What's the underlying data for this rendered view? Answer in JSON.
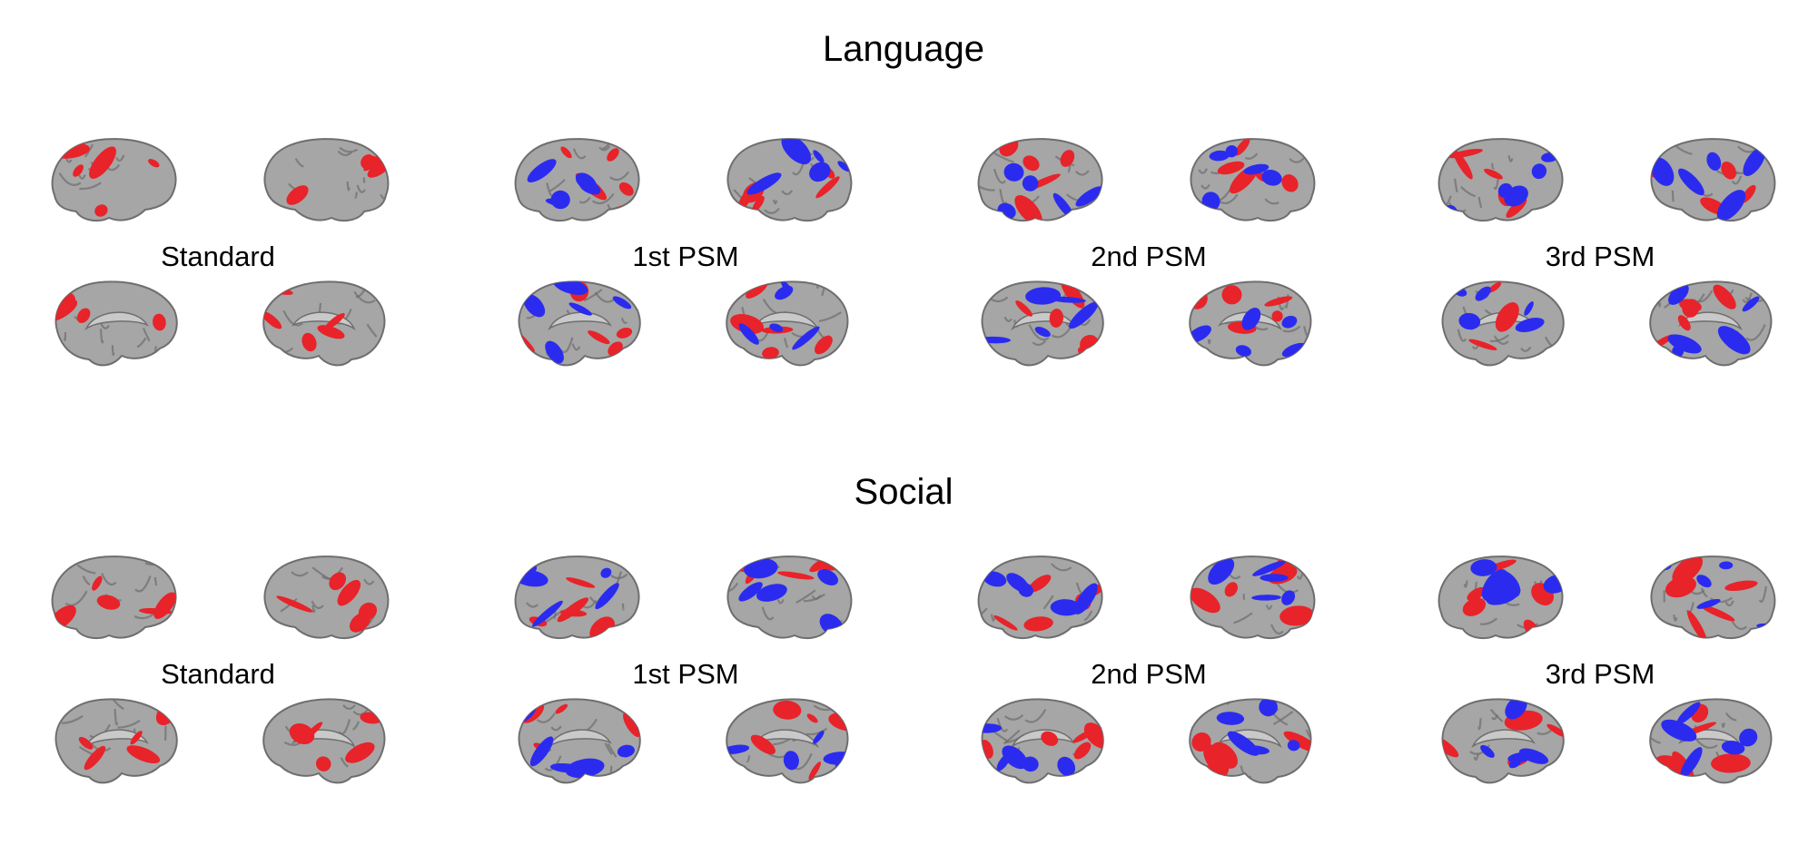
{
  "figure": {
    "panels": [
      {
        "title": "Language",
        "conditions": [
          {
            "label": "Standard",
            "views": [
              {
                "view": "lateral-left",
                "regions": [
                  "red"
                ]
              },
              {
                "view": "lateral-right",
                "regions": [
                  "red"
                ]
              },
              {
                "view": "medial-left",
                "regions": [
                  "red"
                ]
              },
              {
                "view": "medial-right",
                "regions": [
                  "red"
                ]
              }
            ]
          },
          {
            "label": "1st PSM",
            "views": [
              {
                "view": "lateral-left",
                "regions": [
                  "red",
                  "blue"
                ]
              },
              {
                "view": "lateral-right",
                "regions": [
                  "red",
                  "blue"
                ]
              },
              {
                "view": "medial-left",
                "regions": [
                  "red",
                  "blue"
                ]
              },
              {
                "view": "medial-right",
                "regions": [
                  "red",
                  "blue"
                ]
              }
            ]
          },
          {
            "label": "2nd PSM",
            "views": [
              {
                "view": "lateral-left",
                "regions": [
                  "red",
                  "blue"
                ]
              },
              {
                "view": "lateral-right",
                "regions": [
                  "red",
                  "blue"
                ]
              },
              {
                "view": "medial-left",
                "regions": [
                  "red",
                  "blue"
                ]
              },
              {
                "view": "medial-right",
                "regions": [
                  "red",
                  "blue"
                ]
              }
            ]
          },
          {
            "label": "3rd PSM",
            "views": [
              {
                "view": "lateral-left",
                "regions": [
                  "red",
                  "blue"
                ]
              },
              {
                "view": "lateral-right",
                "regions": [
                  "red",
                  "blue"
                ]
              },
              {
                "view": "medial-left",
                "regions": [
                  "red",
                  "blue"
                ]
              },
              {
                "view": "medial-right",
                "regions": [
                  "red",
                  "blue"
                ]
              }
            ]
          }
        ]
      },
      {
        "title": "Social",
        "conditions": [
          {
            "label": "Standard",
            "views": [
              {
                "view": "lateral-left",
                "regions": [
                  "red"
                ]
              },
              {
                "view": "lateral-right",
                "regions": [
                  "red"
                ]
              },
              {
                "view": "medial-left",
                "regions": [
                  "red"
                ]
              },
              {
                "view": "medial-right",
                "regions": [
                  "red"
                ]
              }
            ]
          },
          {
            "label": "1st PSM",
            "views": [
              {
                "view": "lateral-left",
                "regions": [
                  "red",
                  "blue"
                ]
              },
              {
                "view": "lateral-right",
                "regions": [
                  "red",
                  "blue"
                ]
              },
              {
                "view": "medial-left",
                "regions": [
                  "red",
                  "blue"
                ]
              },
              {
                "view": "medial-right",
                "regions": [
                  "red",
                  "blue"
                ]
              }
            ]
          },
          {
            "label": "2nd PSM",
            "views": [
              {
                "view": "lateral-left",
                "regions": [
                  "red",
                  "blue"
                ]
              },
              {
                "view": "lateral-right",
                "regions": [
                  "red",
                  "blue"
                ]
              },
              {
                "view": "medial-left",
                "regions": [
                  "red",
                  "blue"
                ]
              },
              {
                "view": "medial-right",
                "regions": [
                  "red",
                  "blue"
                ]
              }
            ]
          },
          {
            "label": "3rd PSM",
            "views": [
              {
                "view": "lateral-left",
                "regions": [
                  "red",
                  "blue"
                ]
              },
              {
                "view": "lateral-right",
                "regions": [
                  "red",
                  "blue"
                ]
              },
              {
                "view": "medial-left",
                "regions": [
                  "red",
                  "blue"
                ]
              },
              {
                "view": "medial-right",
                "regions": [
                  "red",
                  "blue"
                ]
              }
            ]
          }
        ]
      }
    ]
  },
  "colors": {
    "cortex": "#a6a6a6",
    "cortex_dark": "#6e6e6e",
    "positive": "#e8232a",
    "negative": "#2b2bf0"
  }
}
